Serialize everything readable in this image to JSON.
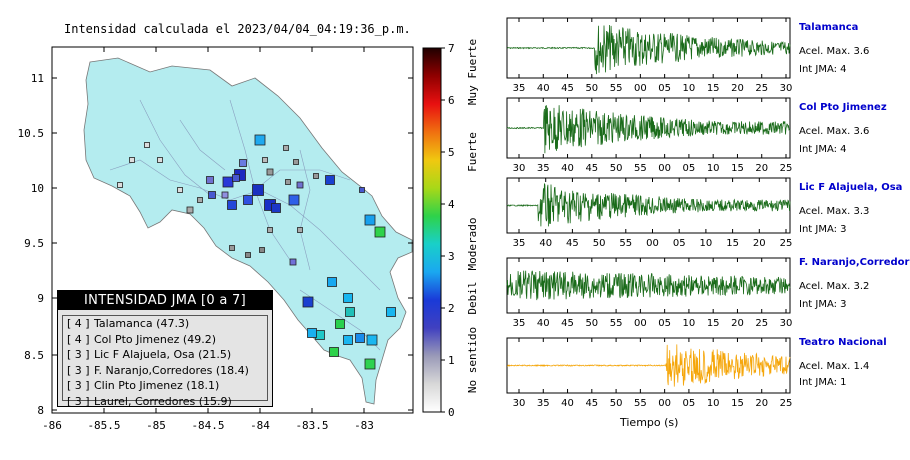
{
  "map": {
    "title": "Intensidad calculada el 2023/04/04_04:19:36_p.m.",
    "x_ticks": [
      "-86",
      "-85.5",
      "-85",
      "-84.5",
      "-84",
      "-83.5",
      "-83"
    ],
    "y_ticks": [
      "11",
      "10.5",
      "10",
      "9.5",
      "9",
      "8.5",
      "8"
    ],
    "land_color": "#b4ecef",
    "sea_color": "#ffffff"
  },
  "legend": {
    "title": "INTENSIDAD JMA [0 a 7]",
    "items": [
      {
        "level": "[ 4 ]",
        "text": "Talamanca (47.3)"
      },
      {
        "level": "[ 4 ]",
        "text": "Col Pto Jimenez (49.2)"
      },
      {
        "level": "[ 3 ]",
        "text": "Lic F Alajuela, Osa (21.5)"
      },
      {
        "level": "[ 3 ]",
        "text": "F. Naranjo,Corredores (18.4)"
      },
      {
        "level": "[ 3 ]",
        "text": "Clin Pto Jimenez (18.1)"
      },
      {
        "level": "[ 3 ]",
        "text": "Laurel, Corredores (15.9)"
      }
    ]
  },
  "colorbar": {
    "ticks": [
      "0",
      "1",
      "2",
      "3",
      "4",
      "5",
      "6",
      "7"
    ],
    "categories": [
      "No sentido",
      "Debil",
      "Moderado",
      "Fuerte",
      "Muy Fuerte"
    ]
  },
  "stations": [
    {
      "name": "Talamanca",
      "accel": "Acel. Max. 3.6",
      "jma": "Int JMA: 4",
      "ticks": [
        "35",
        "40",
        "45",
        "50",
        "55",
        "00",
        "05",
        "10",
        "15",
        "20",
        "25",
        "30"
      ],
      "color": "#1a6b1a"
    },
    {
      "name": "Col Pto Jimenez",
      "accel": "Acel. Max. 3.6",
      "jma": "Int JMA: 4",
      "ticks": [
        "30",
        "35",
        "40",
        "45",
        "50",
        "55",
        "00",
        "05",
        "10",
        "15",
        "20",
        "25"
      ],
      "color": "#1a6b1a"
    },
    {
      "name": "Lic F Alajuela, Osa",
      "accel": "Acel. Max. 3.3",
      "jma": "Int JMA: 3",
      "ticks": [
        "35",
        "40",
        "45",
        "50",
        "55",
        "00",
        "05",
        "10",
        "15",
        "20",
        "25"
      ],
      "color": "#1a6b1a"
    },
    {
      "name": "F. Naranjo,Corredores",
      "accel": "Acel. Max. 3.2",
      "jma": "Int JMA: 3",
      "ticks": [
        "35",
        "40",
        "45",
        "50",
        "55",
        "00",
        "05",
        "10",
        "15",
        "20",
        "25",
        "30"
      ],
      "color": "#1a6b1a"
    },
    {
      "name": "Teatro Nacional",
      "accel": "Acel. Max. 1.4",
      "jma": "Int JMA: 1",
      "ticks": [
        "30",
        "35",
        "40",
        "45",
        "50",
        "55",
        "00",
        "05",
        "10",
        "15",
        "20",
        "25"
      ],
      "color": "#f5a60a"
    }
  ],
  "x_axis_title": "Tiempo (s)"
}
